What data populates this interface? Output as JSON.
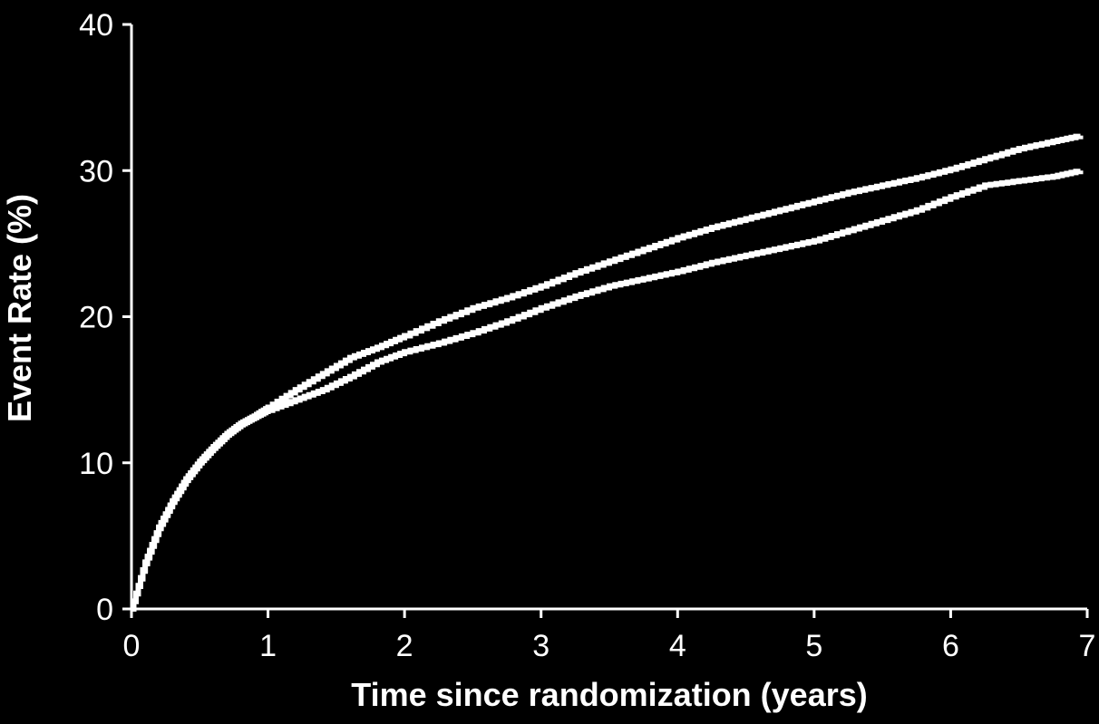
{
  "chart_data": {
    "type": "line",
    "step": true,
    "title": "",
    "xlabel": "Time since randomization (years)",
    "ylabel": "Event Rate (%)",
    "xlim": [
      0,
      7
    ],
    "ylim": [
      0,
      40
    ],
    "xticks": [
      "0",
      "1",
      "2",
      "3",
      "4",
      "5",
      "6",
      "7"
    ],
    "yticks": [
      "0",
      "10",
      "20",
      "30",
      "40"
    ],
    "grid": false,
    "legend": "none",
    "line_color": "#ffffff",
    "background_color": "#000000",
    "series": [
      {
        "x": [
          0,
          0.1,
          0.2,
          0.3,
          0.4,
          0.5,
          0.6,
          0.7,
          0.8,
          0.9,
          1.0,
          1.2,
          1.4,
          1.6,
          1.8,
          2.0,
          2.25,
          2.5,
          2.75,
          3.0,
          3.25,
          3.5,
          3.75,
          4.0,
          4.25,
          4.5,
          4.75,
          5.0,
          5.25,
          5.5,
          5.75,
          6.0,
          6.25,
          6.5,
          6.75,
          6.95
        ],
        "y": [
          0,
          3.2,
          5.6,
          7.4,
          8.9,
          10.1,
          11.1,
          12.0,
          12.7,
          13.2,
          13.8,
          15.0,
          16.1,
          17.2,
          17.9,
          18.7,
          19.7,
          20.6,
          21.3,
          22.1,
          23.0,
          23.8,
          24.6,
          25.4,
          26.1,
          26.7,
          27.3,
          27.9,
          28.5,
          29.0,
          29.5,
          30.1,
          30.8,
          31.5,
          32.0,
          32.4
        ]
      },
      {
        "x": [
          0,
          0.1,
          0.2,
          0.3,
          0.4,
          0.5,
          0.6,
          0.7,
          0.8,
          0.9,
          1.0,
          1.2,
          1.4,
          1.6,
          1.8,
          2.0,
          2.25,
          2.5,
          2.75,
          3.0,
          3.25,
          3.5,
          3.75,
          4.0,
          4.25,
          4.5,
          4.75,
          5.0,
          5.25,
          5.5,
          5.75,
          6.0,
          6.25,
          6.5,
          6.75,
          6.95
        ],
        "y": [
          0,
          3.1,
          5.5,
          7.3,
          8.8,
          10.0,
          11.0,
          11.9,
          12.6,
          13.1,
          13.6,
          14.3,
          15.0,
          15.9,
          16.9,
          17.6,
          18.2,
          18.9,
          19.7,
          20.6,
          21.4,
          22.1,
          22.6,
          23.1,
          23.7,
          24.2,
          24.7,
          25.2,
          25.9,
          26.6,
          27.3,
          28.2,
          29.0,
          29.3,
          29.6,
          30.0
        ]
      }
    ]
  }
}
